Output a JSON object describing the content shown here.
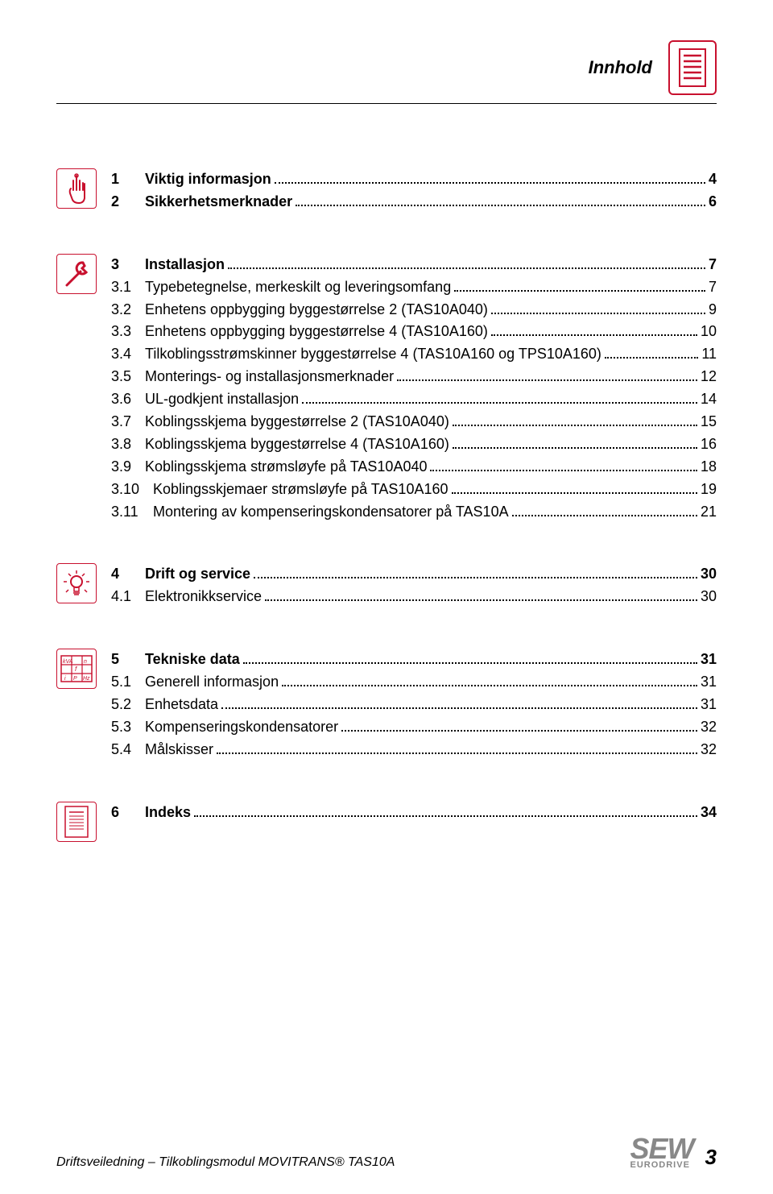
{
  "colors": {
    "accent": "#c8102e",
    "text": "#000000",
    "logo": "#888888",
    "bg": "#ffffff"
  },
  "typography": {
    "base_font": "Arial",
    "base_size": 18,
    "header_size": 22,
    "pagenum_size": 26
  },
  "header": {
    "title": "Innhold"
  },
  "sections": [
    {
      "icon": "hand",
      "lines": [
        {
          "num": "1",
          "text": "Viktig informasjon",
          "page": "4",
          "bold": true
        },
        {
          "num": "2",
          "text": "Sikkerhetsmerknader",
          "page": "6",
          "bold": true
        }
      ]
    },
    {
      "icon": "wrench",
      "lines": [
        {
          "num": "3",
          "text": "Installasjon",
          "page": "7",
          "bold": true
        },
        {
          "num": "3.1",
          "text": "Typebetegnelse, merkeskilt og leveringsomfang",
          "page": "7"
        },
        {
          "num": "3.2",
          "text": "Enhetens oppbygging byggestørrelse 2 (TAS10A040)",
          "page": "9"
        },
        {
          "num": "3.3",
          "text": "Enhetens oppbygging byggestørrelse 4 (TAS10A160)",
          "page": "10"
        },
        {
          "num": "3.4",
          "text": "Tilkoblingsstrømskinner byggestørrelse 4 (TAS10A160 og TPS10A160)",
          "page": "11"
        },
        {
          "num": "3.5",
          "text": "Monterings- og installasjonsmerknader",
          "page": "12"
        },
        {
          "num": "3.6",
          "text": "UL-godkjent installasjon",
          "page": "14"
        },
        {
          "num": "3.7",
          "text": "Koblingsskjema byggestørrelse 2 (TAS10A040)",
          "page": "15"
        },
        {
          "num": "3.8",
          "text": "Koblingsskjema byggestørrelse 4 (TAS10A160)",
          "page": "16"
        },
        {
          "num": "3.9",
          "text": "Koblingsskjema strømsløyfe på TAS10A040",
          "page": "18"
        },
        {
          "num": "3.10",
          "text": "Koblingsskjemaer strømsløyfe på TAS10A160",
          "page": "19"
        },
        {
          "num": "3.11",
          "text": "Montering av kompenseringskondensatorer på TAS10A",
          "page": "21"
        }
      ]
    },
    {
      "icon": "bulb",
      "lines": [
        {
          "num": "4",
          "text": "Drift og service",
          "page": "30",
          "bold": true
        },
        {
          "num": "4.1",
          "text": "Elektronikkservice",
          "page": "30"
        }
      ]
    },
    {
      "icon": "table",
      "lines": [
        {
          "num": "5",
          "text": "Tekniske data",
          "page": "31",
          "bold": true
        },
        {
          "num": "5.1",
          "text": "Generell informasjon",
          "page": "31"
        },
        {
          "num": "5.2",
          "text": "Enhetsdata",
          "page": "31"
        },
        {
          "num": "5.3",
          "text": "Kompenseringskondensatorer",
          "page": "32"
        },
        {
          "num": "5.4",
          "text": "Målskisser",
          "page": "32"
        }
      ]
    },
    {
      "icon": "index",
      "lines": [
        {
          "num": "6",
          "text": "Indeks",
          "page": "34",
          "bold": true
        }
      ]
    }
  ],
  "footer": {
    "left": "Driftsveiledning – Tilkoblingsmodul MOVITRANS® TAS10A",
    "logo_big": "SEW",
    "logo_small": "EURODRIVE",
    "page": "3"
  }
}
